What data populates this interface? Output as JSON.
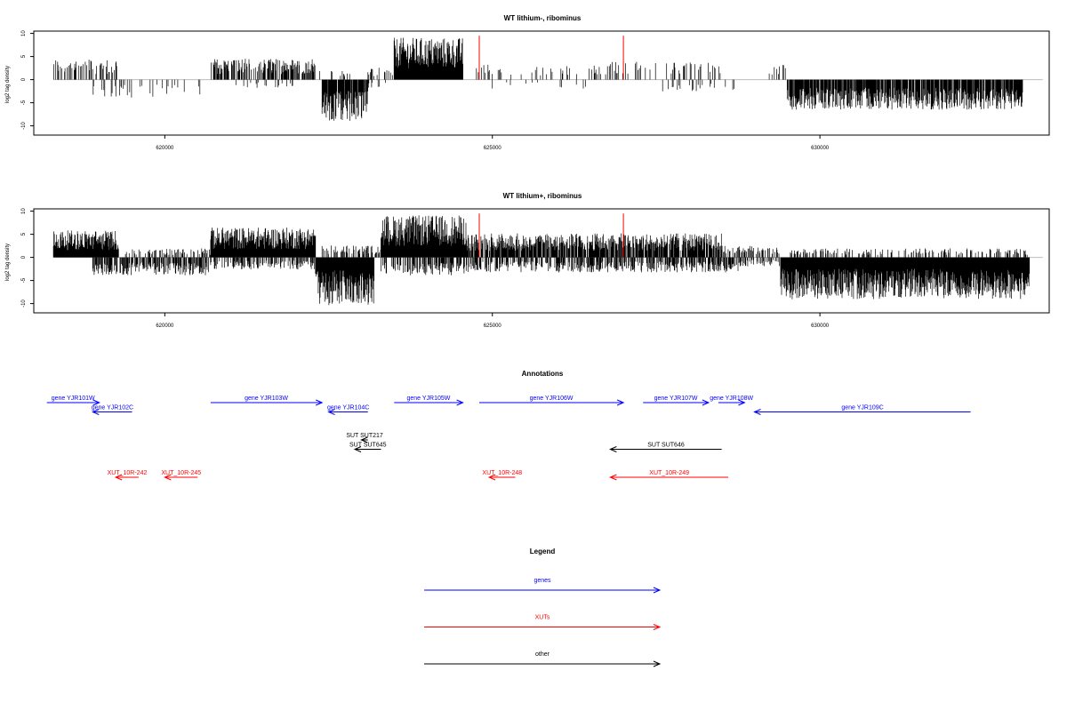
{
  "chart_data": [
    {
      "type": "bar",
      "title": "WT lithium-, ribominus",
      "ylabel": "log2 tag density",
      "xlabel": "",
      "xlim": [
        618000,
        633500
      ],
      "ylim": [
        -12,
        10.5
      ],
      "x_ticks": [
        620000,
        625000,
        630000
      ],
      "x_tick_labels": [
        "620000",
        "625000",
        "630000"
      ],
      "y_ticks": [
        10,
        5,
        0,
        -5,
        -10
      ],
      "y_tick_labels": [
        "10",
        "5",
        "0",
        "-5",
        "-10"
      ],
      "grid": false,
      "baseline": 0,
      "markers": [
        {
          "x": 624800,
          "top": 9.5,
          "color": "#ff0000"
        },
        {
          "x": 627000,
          "top": 9.5,
          "color": "#ff0000"
        }
      ],
      "profile": [
        {
          "from": 618300,
          "to": 619300,
          "value": 3.5,
          "direction": "up",
          "density": 0.35
        },
        {
          "from": 618900,
          "to": 619500,
          "value": 3,
          "direction": "down",
          "density": 0.25
        },
        {
          "from": 619500,
          "to": 620600,
          "value": 3,
          "direction": "down",
          "density": 0.08
        },
        {
          "from": 620700,
          "to": 622300,
          "value": 3.5,
          "direction": "up",
          "density": 0.55
        },
        {
          "from": 621000,
          "to": 622000,
          "value": 1.5,
          "direction": "down",
          "density": 0.1
        },
        {
          "from": 622300,
          "to": 622900,
          "value": 1.5,
          "direction": "up",
          "density": 0.1
        },
        {
          "from": 622400,
          "to": 623100,
          "value": 7,
          "direction": "down",
          "density": 0.9
        },
        {
          "from": 623100,
          "to": 623500,
          "value": 2,
          "direction": "up",
          "density": 0.25
        },
        {
          "from": 623100,
          "to": 623500,
          "value": 1.5,
          "direction": "down",
          "density": 0.15
        },
        {
          "from": 623500,
          "to": 624550,
          "value": 7,
          "direction": "up",
          "density": 1.0
        },
        {
          "from": 624700,
          "to": 626800,
          "value": 2.5,
          "direction": "up",
          "density": 0.12
        },
        {
          "from": 625000,
          "to": 626800,
          "value": 1.5,
          "direction": "down",
          "density": 0.04
        },
        {
          "from": 626800,
          "to": 628500,
          "value": 3,
          "direction": "up",
          "density": 0.2
        },
        {
          "from": 627500,
          "to": 628700,
          "value": 2,
          "direction": "down",
          "density": 0.12
        },
        {
          "from": 629000,
          "to": 629500,
          "value": 3,
          "direction": "up",
          "density": 0.1
        },
        {
          "from": 629500,
          "to": 633100,
          "value": 5,
          "direction": "down",
          "density": 0.85
        }
      ]
    },
    {
      "type": "bar",
      "title": "WT lithium+, ribominus",
      "ylabel": "log2 tag density",
      "xlabel": "",
      "xlim": [
        618000,
        633500
      ],
      "ylim": [
        -12,
        10.5
      ],
      "x_ticks": [
        620000,
        625000,
        630000
      ],
      "x_tick_labels": [
        "620000",
        "625000",
        "630000"
      ],
      "y_ticks": [
        10,
        5,
        0,
        -5,
        -10
      ],
      "y_tick_labels": [
        "10",
        "5",
        "0",
        "-5",
        "-10"
      ],
      "grid": false,
      "baseline": 0,
      "markers": [
        {
          "x": 624800,
          "top": 9.5,
          "color": "#ff0000"
        },
        {
          "x": 627000,
          "top": 9.5,
          "color": "#ff0000"
        }
      ],
      "profile": [
        {
          "from": 618300,
          "to": 619300,
          "value": 4.5,
          "direction": "up",
          "density": 1.0
        },
        {
          "from": 618900,
          "to": 620700,
          "value": 3,
          "direction": "down",
          "density": 0.6
        },
        {
          "from": 619400,
          "to": 620700,
          "value": 1.5,
          "direction": "up",
          "density": 0.35
        },
        {
          "from": 620700,
          "to": 622300,
          "value": 5,
          "direction": "up",
          "density": 1.0
        },
        {
          "from": 620700,
          "to": 622300,
          "value": 2,
          "direction": "down",
          "density": 0.4
        },
        {
          "from": 622300,
          "to": 623200,
          "value": 8,
          "direction": "down",
          "density": 1.0
        },
        {
          "from": 622400,
          "to": 623300,
          "value": 2,
          "direction": "up",
          "density": 0.4
        },
        {
          "from": 623300,
          "to": 624600,
          "value": 7,
          "direction": "up",
          "density": 1.0
        },
        {
          "from": 623300,
          "to": 624600,
          "value": 3,
          "direction": "down",
          "density": 0.5
        },
        {
          "from": 624600,
          "to": 628500,
          "value": 4,
          "direction": "up",
          "density": 0.8
        },
        {
          "from": 624600,
          "to": 628800,
          "value": 2.5,
          "direction": "down",
          "density": 0.55
        },
        {
          "from": 628500,
          "to": 629400,
          "value": 2,
          "direction": "up",
          "density": 0.4
        },
        {
          "from": 628700,
          "to": 629400,
          "value": 1.5,
          "direction": "down",
          "density": 0.3
        },
        {
          "from": 629400,
          "to": 633200,
          "value": 7,
          "direction": "down",
          "density": 1.0
        },
        {
          "from": 629500,
          "to": 633200,
          "value": 1.5,
          "direction": "up",
          "density": 0.25
        }
      ]
    },
    {
      "type": "annotation-track",
      "title": "Annotations",
      "features": [
        {
          "label": "gene YJR101W",
          "start": 618200,
          "end": 619000,
          "strand": "+",
          "kind": "gene",
          "row": 0
        },
        {
          "label": "gene YJR102C",
          "start": 619500,
          "end": 618900,
          "strand": "-",
          "kind": "gene",
          "row": 1
        },
        {
          "label": "gene YJR103W",
          "start": 620700,
          "end": 622400,
          "strand": "+",
          "kind": "gene",
          "row": 0
        },
        {
          "label": "gene YJR104C",
          "start": 623100,
          "end": 622500,
          "strand": "-",
          "kind": "gene",
          "row": 1
        },
        {
          "label": "gene YJR105W",
          "start": 623500,
          "end": 624550,
          "strand": "+",
          "kind": "gene",
          "row": 0
        },
        {
          "label": "gene YJR106W",
          "start": 624800,
          "end": 627000,
          "strand": "+",
          "kind": "gene",
          "row": 0
        },
        {
          "label": "gene YJR107W",
          "start": 627300,
          "end": 628300,
          "strand": "+",
          "kind": "gene",
          "row": 0
        },
        {
          "label": "gene YJR108W",
          "start": 628450,
          "end": 628850,
          "strand": "+",
          "kind": "gene",
          "row": 0
        },
        {
          "label": "gene YJR109C",
          "start": 632300,
          "end": 629000,
          "strand": "-",
          "kind": "gene",
          "row": 1
        },
        {
          "label": "SUT SUT217",
          "start": 623100,
          "end": 623000,
          "strand": "+",
          "kind": "other",
          "row": 4
        },
        {
          "label": "SUT SUT645",
          "start": 623300,
          "end": 622900,
          "strand": "-",
          "kind": "other",
          "row": 5
        },
        {
          "label": "SUT SUT646",
          "start": 628500,
          "end": 626800,
          "strand": "-",
          "kind": "other",
          "row": 5
        },
        {
          "label": "XUT_10R-242",
          "start": 619600,
          "end": 619250,
          "strand": "-",
          "kind": "xut",
          "row": 8
        },
        {
          "label": "XUT_10R-245",
          "start": 620500,
          "end": 620000,
          "strand": "-",
          "kind": "xut",
          "row": 8
        },
        {
          "label": "XUT_10R-248",
          "start": 625350,
          "end": 624950,
          "strand": "-",
          "kind": "xut",
          "row": 8
        },
        {
          "label": "XUT_10R-249",
          "start": 628600,
          "end": 626800,
          "strand": "-",
          "kind": "xut",
          "row": 8
        }
      ]
    }
  ],
  "legend": {
    "title": "Legend",
    "items": [
      {
        "label": "genes",
        "color": "#0000ff"
      },
      {
        "label": "XUTs",
        "color": "#ff0000"
      },
      {
        "label": "other",
        "color": "#000000"
      }
    ]
  },
  "colors": {
    "gene": "#0000ff",
    "xut": "#ff0000",
    "other": "#000000",
    "baseline": "#bbbbbb"
  }
}
